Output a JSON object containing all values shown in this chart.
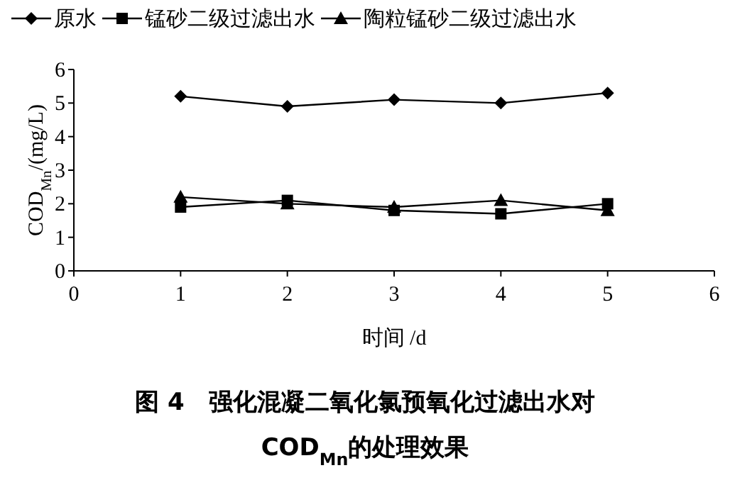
{
  "chart_data": {
    "type": "line",
    "title": "图 4　强化混凝二氧化氯预氧化过滤出水对\nCOD$_{Mn}$的处理效果",
    "xlabel": "时间 /d",
    "ylabel": "COD$_{Mn}$/(mg/L)",
    "x": [
      1,
      2,
      3,
      4,
      5
    ],
    "series": [
      {
        "name": "原水",
        "color": "#000000",
        "marker": "diamond",
        "values": [
          5.2,
          4.9,
          5.1,
          5.0,
          5.3
        ]
      },
      {
        "name": "锰砂二级过滤出水",
        "color": "#000000",
        "marker": "square",
        "values": [
          1.9,
          2.1,
          1.8,
          1.7,
          2.0
        ]
      },
      {
        "name": "陶粒锰砂二级过滤出水",
        "color": "#000000",
        "marker": "triangle",
        "values": [
          2.2,
          2.0,
          1.9,
          2.1,
          1.8
        ]
      }
    ],
    "xlim": [
      0,
      6
    ],
    "xticks": [
      0,
      1,
      2,
      3,
      4,
      5,
      6
    ],
    "ylim": [
      0,
      6
    ],
    "yticks": [
      0,
      1,
      2,
      3,
      4,
      5,
      6
    ],
    "grid": false,
    "legend": "top",
    "line_style": "solid"
  }
}
